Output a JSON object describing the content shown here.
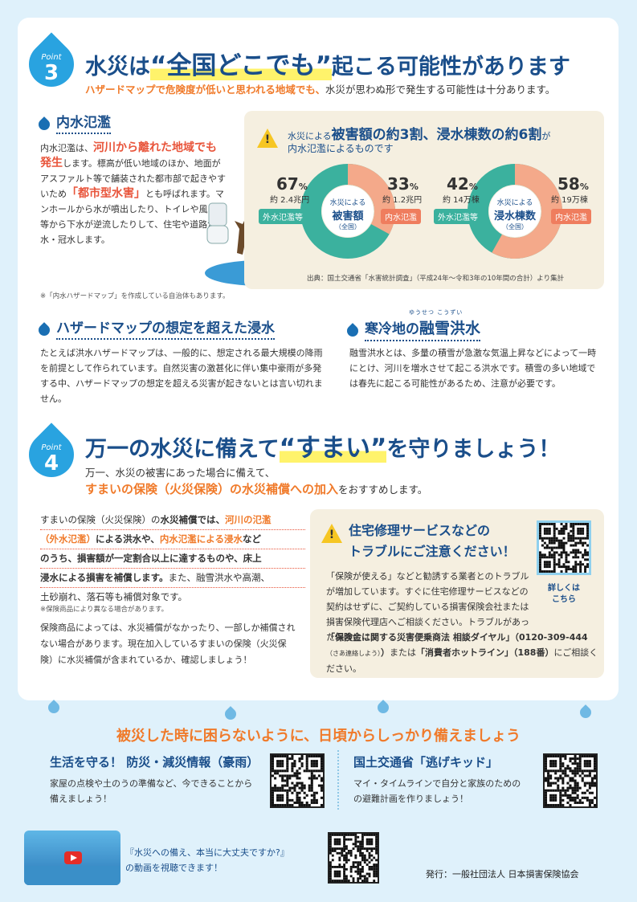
{
  "point3": {
    "label": "Point",
    "number": "3",
    "title_pre": "水災は",
    "title_hl": "“全国どこでも”",
    "title_post": "起こる可能性があります",
    "subtitle_orange": "ハザードマップで危険度が低いと思われる地域でも、",
    "subtitle_rest": "水災が思わぬ形で発生する可能性は十分あります。"
  },
  "naisui": {
    "title": "内水氾濫",
    "p1": "内水氾濫は、",
    "p1_red": "河川から離れた地域でも発生",
    "p2": "します。標高が低い地域のほか、地面がアスファルト等で舗装された都市部で起きやすいため",
    "p2_red": "「都市型水害」",
    "p3": "とも呼ばれます。マンホールから水が噴出したり、トイレや風呂場等から下水が逆流したりして、住宅や道路が浸水・冠水します。",
    "note": "※「内水ハザードマップ」を作成している自治体もあります。"
  },
  "stats": {
    "headline_a": "水災による",
    "headline_b": "被害額の約3割、浸水棟数の約6割",
    "headline_c": "が",
    "headline_d": "内水氾濫によるものです",
    "source": "出典：国土交通省「水害統計調査」（平成24年～令和3年の10年間の合計）より集計",
    "left": {
      "center_top": "水災による",
      "center_main": "被害額",
      "center_sub": "（全国）",
      "a_pct": "67",
      "a_val": "約 2.4兆円",
      "a_tag": "外水氾濫等",
      "b_pct": "33",
      "b_val": "約 1.2兆円",
      "b_tag": "内水氾濫",
      "unit": "%"
    },
    "right": {
      "center_top": "水災による",
      "center_main": "浸水棟数",
      "center_sub": "（全国）",
      "a_pct": "42",
      "a_val": "約 14万棟",
      "a_tag": "外水氾濫等",
      "b_pct": "58",
      "b_val": "約 19万棟",
      "b_tag": "内水氾濫",
      "unit": "%"
    }
  },
  "hazard": {
    "title": "ハザードマップの想定を超えた浸水",
    "body": "たとえば洪水ハザードマップは、一般的に、想定される最大規模の降雨を前提として作られています。自然災害の激甚化に伴い集中豪雨が多発する中、ハザードマップの想定を超える災害が起きないとは言い切れません。"
  },
  "snow": {
    "title_a": "寒冷地の",
    "title_b": "融雪洪水",
    "ruby": "ゆうせつ こうずい",
    "body": "融雪洪水とは、多量の積雪が急激な気温上昇などによって一時にとけ、河川を増水させて起こる洪水です。積雪の多い地域では春先に起こる可能性があるため、注意が必要です。"
  },
  "point4": {
    "label": "Point",
    "number": "4",
    "title_pre": "万一の水災に備えて",
    "title_hl": "“すまい”",
    "title_post": "を守りましょう！",
    "sub1": "万一、水災の被害にあった場合に備えて、",
    "sub2_orange": "すまいの保険（火災保険）の水災補償への加入",
    "sub2_rest": "をおすすめします。"
  },
  "insurance": {
    "l1a": "すまいの保険（火災保険）の",
    "l1b": "水災補償では、",
    "l1c": "河川の氾濫",
    "l2a": "（外水氾濫）",
    "l2b": "による洪水や、",
    "l2c": "内水氾濫による浸水",
    "l2d": "など",
    "l3": "のうち、損害額が一定割合以上に達するものや、床上",
    "l4a": "浸水による損害を補償します。",
    "l4b": "また、融雪洪水や高潮、",
    "l5": "土砂崩れ、落石等も補償対象です。",
    "note": "※保険商品により異なる場合があります。",
    "p2": "保険商品によっては、水災補償がなかったり、一部しか補償されない場合があります。現在加入しているすまいの保険（火災保険）に水災補償が含まれているか、確認しましょう！"
  },
  "trouble": {
    "title1": "住宅修理サービスなどの",
    "title2": "トラブルにご注意ください！",
    "body1": "「保険が使える」などと勧誘する業者とのトラブルが増加しています。すぐに住宅修理サービスなどの契約はせずに、ご契約している損害保険会社または損害保険代理店へご相談ください。トラブルがあった場合には、",
    "body_b1": "「保険金に関する災害便乗商法 相談ダイヤル」（0120-309-444",
    "body_small": "（さあ連絡しよう）",
    "body_b2": "）",
    "body_mid": "または",
    "body_b3": "「消費者ホットライン」（188番）",
    "body_end": "にご相談ください。",
    "qr_label1": "詳しくは",
    "qr_label2": "こちら"
  },
  "footer": {
    "banner": "被災した時に困らないように、日頃からしっかり備えましょう",
    "left_title": "生活を守る！ 防災・減災情報（豪雨）",
    "left_body1": "家屋の点検や土のうの準備など、今できることから",
    "left_body2": "備えましょう！",
    "right_title": "国土交通省「逃げキッド」",
    "right_body1": "マイ・タイムラインで自分と家族のための",
    "right_body2": "の避難計画を作りましょう！",
    "video1": "『水災への備え、本当に大丈夫ですか?』",
    "video2": "の動画を視聴できます！",
    "publisher": "発行：一般社団法人 日本損害保険協会"
  },
  "colors": {
    "accent_blue": "#1a4e8a",
    "orange": "#f07a2a",
    "red": "#e8543a",
    "teal": "#3bb19e",
    "salmon": "#ef7d5e",
    "yellow": "#f6c623"
  }
}
